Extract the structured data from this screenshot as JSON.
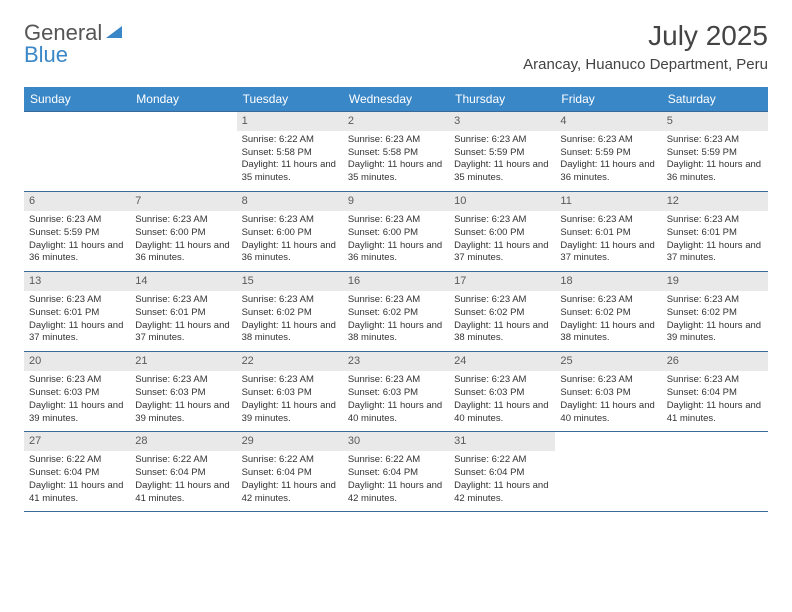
{
  "brand": {
    "part1": "General",
    "part2": "Blue"
  },
  "title": "July 2025",
  "location": "Arancay, Huanuco Department, Peru",
  "colors": {
    "header_bg": "#3a87c7",
    "header_fg": "#ffffff",
    "daynum_bg": "#e9e9e9",
    "rule": "#3a6a9a"
  },
  "weekdays": [
    "Sunday",
    "Monday",
    "Tuesday",
    "Wednesday",
    "Thursday",
    "Friday",
    "Saturday"
  ],
  "grid": [
    [
      {
        "n": "",
        "sr": "",
        "ss": "",
        "dl": ""
      },
      {
        "n": "",
        "sr": "",
        "ss": "",
        "dl": ""
      },
      {
        "n": "1",
        "sr": "6:22 AM",
        "ss": "5:58 PM",
        "dl": "11 hours and 35 minutes."
      },
      {
        "n": "2",
        "sr": "6:23 AM",
        "ss": "5:58 PM",
        "dl": "11 hours and 35 minutes."
      },
      {
        "n": "3",
        "sr": "6:23 AM",
        "ss": "5:59 PM",
        "dl": "11 hours and 35 minutes."
      },
      {
        "n": "4",
        "sr": "6:23 AM",
        "ss": "5:59 PM",
        "dl": "11 hours and 36 minutes."
      },
      {
        "n": "5",
        "sr": "6:23 AM",
        "ss": "5:59 PM",
        "dl": "11 hours and 36 minutes."
      }
    ],
    [
      {
        "n": "6",
        "sr": "6:23 AM",
        "ss": "5:59 PM",
        "dl": "11 hours and 36 minutes."
      },
      {
        "n": "7",
        "sr": "6:23 AM",
        "ss": "6:00 PM",
        "dl": "11 hours and 36 minutes."
      },
      {
        "n": "8",
        "sr": "6:23 AM",
        "ss": "6:00 PM",
        "dl": "11 hours and 36 minutes."
      },
      {
        "n": "9",
        "sr": "6:23 AM",
        "ss": "6:00 PM",
        "dl": "11 hours and 36 minutes."
      },
      {
        "n": "10",
        "sr": "6:23 AM",
        "ss": "6:00 PM",
        "dl": "11 hours and 37 minutes."
      },
      {
        "n": "11",
        "sr": "6:23 AM",
        "ss": "6:01 PM",
        "dl": "11 hours and 37 minutes."
      },
      {
        "n": "12",
        "sr": "6:23 AM",
        "ss": "6:01 PM",
        "dl": "11 hours and 37 minutes."
      }
    ],
    [
      {
        "n": "13",
        "sr": "6:23 AM",
        "ss": "6:01 PM",
        "dl": "11 hours and 37 minutes."
      },
      {
        "n": "14",
        "sr": "6:23 AM",
        "ss": "6:01 PM",
        "dl": "11 hours and 37 minutes."
      },
      {
        "n": "15",
        "sr": "6:23 AM",
        "ss": "6:02 PM",
        "dl": "11 hours and 38 minutes."
      },
      {
        "n": "16",
        "sr": "6:23 AM",
        "ss": "6:02 PM",
        "dl": "11 hours and 38 minutes."
      },
      {
        "n": "17",
        "sr": "6:23 AM",
        "ss": "6:02 PM",
        "dl": "11 hours and 38 minutes."
      },
      {
        "n": "18",
        "sr": "6:23 AM",
        "ss": "6:02 PM",
        "dl": "11 hours and 38 minutes."
      },
      {
        "n": "19",
        "sr": "6:23 AM",
        "ss": "6:02 PM",
        "dl": "11 hours and 39 minutes."
      }
    ],
    [
      {
        "n": "20",
        "sr": "6:23 AM",
        "ss": "6:03 PM",
        "dl": "11 hours and 39 minutes."
      },
      {
        "n": "21",
        "sr": "6:23 AM",
        "ss": "6:03 PM",
        "dl": "11 hours and 39 minutes."
      },
      {
        "n": "22",
        "sr": "6:23 AM",
        "ss": "6:03 PM",
        "dl": "11 hours and 39 minutes."
      },
      {
        "n": "23",
        "sr": "6:23 AM",
        "ss": "6:03 PM",
        "dl": "11 hours and 40 minutes."
      },
      {
        "n": "24",
        "sr": "6:23 AM",
        "ss": "6:03 PM",
        "dl": "11 hours and 40 minutes."
      },
      {
        "n": "25",
        "sr": "6:23 AM",
        "ss": "6:03 PM",
        "dl": "11 hours and 40 minutes."
      },
      {
        "n": "26",
        "sr": "6:23 AM",
        "ss": "6:04 PM",
        "dl": "11 hours and 41 minutes."
      }
    ],
    [
      {
        "n": "27",
        "sr": "6:22 AM",
        "ss": "6:04 PM",
        "dl": "11 hours and 41 minutes."
      },
      {
        "n": "28",
        "sr": "6:22 AM",
        "ss": "6:04 PM",
        "dl": "11 hours and 41 minutes."
      },
      {
        "n": "29",
        "sr": "6:22 AM",
        "ss": "6:04 PM",
        "dl": "11 hours and 42 minutes."
      },
      {
        "n": "30",
        "sr": "6:22 AM",
        "ss": "6:04 PM",
        "dl": "11 hours and 42 minutes."
      },
      {
        "n": "31",
        "sr": "6:22 AM",
        "ss": "6:04 PM",
        "dl": "11 hours and 42 minutes."
      },
      {
        "n": "",
        "sr": "",
        "ss": "",
        "dl": ""
      },
      {
        "n": "",
        "sr": "",
        "ss": "",
        "dl": ""
      }
    ]
  ],
  "labels": {
    "sunrise": "Sunrise: ",
    "sunset": "Sunset: ",
    "daylight": "Daylight: "
  }
}
